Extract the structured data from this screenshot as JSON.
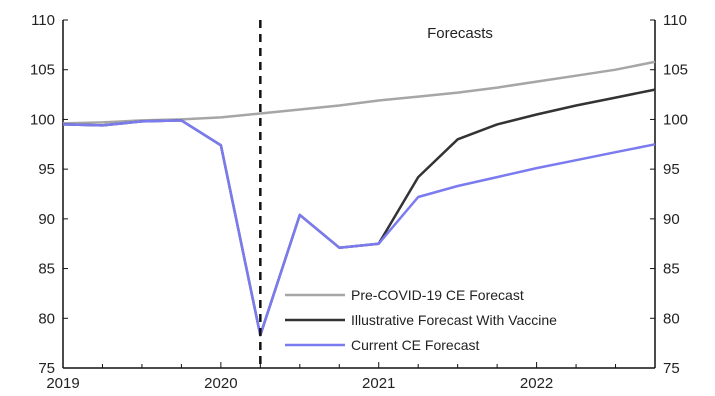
{
  "chart_data": {
    "type": "line",
    "title": "",
    "xlabel": "",
    "ylabel": "",
    "ylim": [
      75,
      110
    ],
    "yticks": [
      75,
      80,
      85,
      90,
      95,
      100,
      105,
      110
    ],
    "ytick_labels": [
      "75",
      "80",
      "85",
      "90",
      "95",
      "100",
      "105",
      "110"
    ],
    "right_axis": true,
    "xlim": [
      2019.0,
      2022.75
    ],
    "xticks": [
      2019,
      2020,
      2021,
      2022
    ],
    "xtick_labels": [
      "2019",
      "2020",
      "2021",
      "2022"
    ],
    "grid": false,
    "legend_position": "lower-right",
    "annotation": {
      "label": "Forecasts",
      "x": 2020.25
    },
    "series": [
      {
        "name": "Pre-COVID-19 CE Forecast",
        "color": "#a6a6a6",
        "x": [
          2019.0,
          2019.25,
          2019.5,
          2019.75,
          2020.0,
          2020.25,
          2020.5,
          2020.75,
          2021.0,
          2021.25,
          2021.5,
          2021.75,
          2022.0,
          2022.25,
          2022.5,
          2022.75
        ],
        "values": [
          99.6,
          99.7,
          99.9,
          100.0,
          100.2,
          100.6,
          101.0,
          101.4,
          101.9,
          102.3,
          102.7,
          103.2,
          103.8,
          104.4,
          105.0,
          105.8
        ]
      },
      {
        "name": "Illustrative Forecast With Vaccine",
        "color": "#333333",
        "x": [
          2019.0,
          2019.25,
          2019.5,
          2019.75,
          2020.0,
          2020.25,
          2020.5,
          2020.75,
          2021.0,
          2021.25,
          2021.5,
          2021.75,
          2022.0,
          2022.25,
          2022.5,
          2022.75
        ],
        "values": [
          99.5,
          99.4,
          99.8,
          99.9,
          97.4,
          78.3,
          90.4,
          87.1,
          87.5,
          94.2,
          98.0,
          99.5,
          100.5,
          101.4,
          102.2,
          103.0
        ]
      },
      {
        "name": "Current CE Forecast",
        "color": "#7b7bf0",
        "x": [
          2019.0,
          2019.25,
          2019.5,
          2019.75,
          2020.0,
          2020.25,
          2020.5,
          2020.75,
          2021.0,
          2021.25,
          2021.5,
          2021.75,
          2022.0,
          2022.25,
          2022.5,
          2022.75
        ],
        "values": [
          99.5,
          99.4,
          99.8,
          99.9,
          97.4,
          78.3,
          90.4,
          87.1,
          87.5,
          92.2,
          93.3,
          94.2,
          95.1,
          95.9,
          96.7,
          97.5
        ]
      }
    ]
  }
}
